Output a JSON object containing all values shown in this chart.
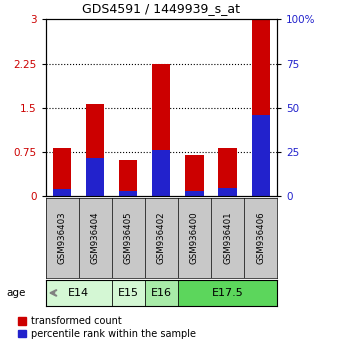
{
  "title": "GDS4591 / 1449939_s_at",
  "samples": [
    "GSM936403",
    "GSM936404",
    "GSM936405",
    "GSM936402",
    "GSM936400",
    "GSM936401",
    "GSM936406"
  ],
  "transformed_counts": [
    0.82,
    1.57,
    0.62,
    2.25,
    0.7,
    0.82,
    3.0
  ],
  "percentile_ranks_pct": [
    4,
    22,
    3,
    26,
    3,
    5,
    46
  ],
  "age_groups": [
    {
      "label": "E14",
      "start": 0,
      "end": 2,
      "color": "#d4f7d4"
    },
    {
      "label": "E15",
      "start": 2,
      "end": 3,
      "color": "#d4f7d4"
    },
    {
      "label": "E16",
      "start": 3,
      "end": 4,
      "color": "#a8eba8"
    },
    {
      "label": "E17.5",
      "start": 4,
      "end": 7,
      "color": "#5cd65c"
    }
  ],
  "left_yticks": [
    0,
    0.75,
    1.5,
    2.25,
    3.0
  ],
  "left_ytick_labels": [
    "0",
    "0.75",
    "1.5",
    "2.25",
    "3"
  ],
  "right_yticks": [
    0,
    25,
    50,
    75,
    100
  ],
  "right_ytick_labels": [
    "0",
    "25",
    "50",
    "75",
    "100%"
  ],
  "bar_color": "#cc0000",
  "blue_color": "#2222cc",
  "ylabel_left_color": "#cc0000",
  "ylabel_right_color": "#2222cc",
  "bar_width": 0.55,
  "ylim_left": [
    0,
    3.0
  ],
  "ylim_right": [
    0,
    100
  ],
  "sample_box_color": "#c8c8c8",
  "age_label_color": "#808080"
}
